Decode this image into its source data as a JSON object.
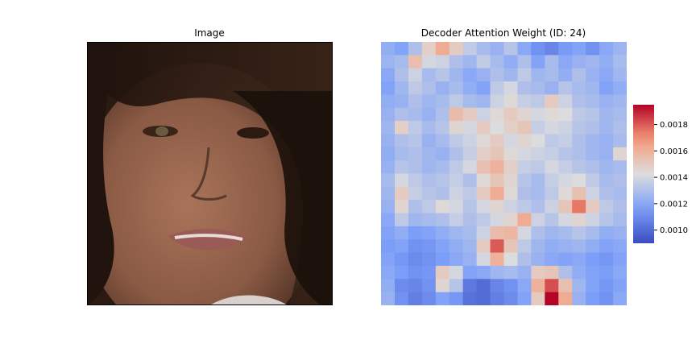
{
  "titles": {
    "image": "Image",
    "heatmap": "Decoder Attention Weight (ID: 24)"
  },
  "image_panel": {
    "subject": "face-photo",
    "colors": {
      "background_dark": "#2a1a12",
      "skin": "#8a5a44",
      "skin_light": "#a9735a",
      "hair": "#1e120c",
      "lips": "#9a5a55",
      "collar": "#d8d0cc"
    }
  },
  "chart_data": {
    "type": "heatmap",
    "title": "Decoder Attention Weight (ID: 24)",
    "colormap": "coolwarm",
    "rows": 20,
    "cols": 18,
    "vmin": 0.0009,
    "vmax": 0.00195,
    "colorbar_ticks": [
      0.001,
      0.0012,
      0.0014,
      0.0016,
      0.0018
    ],
    "colorbar_tick_labels": [
      "0.0010",
      "0.0012",
      "0.0014",
      "0.0016",
      "0.0018"
    ],
    "values": [
      [
        0.00122,
        0.00118,
        0.0013,
        0.00148,
        0.00162,
        0.0015,
        0.00135,
        0.00128,
        0.00124,
        0.00132,
        0.0012,
        0.00112,
        0.00108,
        0.00115,
        0.00118,
        0.00112,
        0.0012,
        0.00125
      ],
      [
        0.00125,
        0.00128,
        0.00155,
        0.0014,
        0.00138,
        0.0013,
        0.00126,
        0.00135,
        0.00128,
        0.00122,
        0.0013,
        0.00118,
        0.00128,
        0.0012,
        0.00124,
        0.00126,
        0.00122,
        0.00128
      ],
      [
        0.0012,
        0.0013,
        0.00138,
        0.00128,
        0.00132,
        0.00126,
        0.0012,
        0.00124,
        0.0013,
        0.00126,
        0.00134,
        0.00126,
        0.00128,
        0.00122,
        0.0013,
        0.00124,
        0.0012,
        0.00126
      ],
      [
        0.00118,
        0.00126,
        0.00134,
        0.0013,
        0.00124,
        0.00128,
        0.00122,
        0.00118,
        0.00134,
        0.0014,
        0.0013,
        0.00128,
        0.00124,
        0.00132,
        0.00128,
        0.00126,
        0.00118,
        0.00122
      ],
      [
        0.00122,
        0.00124,
        0.0013,
        0.00126,
        0.00128,
        0.00134,
        0.00128,
        0.00126,
        0.00138,
        0.00144,
        0.00136,
        0.00134,
        0.0015,
        0.00138,
        0.0013,
        0.00128,
        0.00124,
        0.00126
      ],
      [
        0.00124,
        0.0013,
        0.00128,
        0.00124,
        0.0013,
        0.00156,
        0.0015,
        0.00138,
        0.00144,
        0.0015,
        0.00146,
        0.0014,
        0.00144,
        0.00142,
        0.00134,
        0.00132,
        0.00126,
        0.00128
      ],
      [
        0.00126,
        0.00148,
        0.00134,
        0.00128,
        0.00132,
        0.00146,
        0.0014,
        0.0015,
        0.00142,
        0.00148,
        0.00152,
        0.00136,
        0.0014,
        0.00138,
        0.00132,
        0.0013,
        0.00126,
        0.0013
      ],
      [
        0.00124,
        0.0013,
        0.00132,
        0.00124,
        0.00128,
        0.00134,
        0.00138,
        0.00144,
        0.0015,
        0.0014,
        0.00146,
        0.00142,
        0.00134,
        0.00136,
        0.0013,
        0.00126,
        0.00124,
        0.00128
      ],
      [
        0.00122,
        0.00128,
        0.0013,
        0.00126,
        0.00124,
        0.0013,
        0.00136,
        0.00148,
        0.00152,
        0.00144,
        0.0014,
        0.00138,
        0.00136,
        0.00132,
        0.0013,
        0.00126,
        0.00124,
        0.00146
      ],
      [
        0.00124,
        0.00132,
        0.0013,
        0.00126,
        0.00128,
        0.00134,
        0.0014,
        0.00154,
        0.0016,
        0.00148,
        0.00136,
        0.00134,
        0.0014,
        0.00136,
        0.00132,
        0.0013,
        0.00126,
        0.00128
      ],
      [
        0.00128,
        0.0014,
        0.00134,
        0.0013,
        0.00132,
        0.00136,
        0.0013,
        0.00144,
        0.00152,
        0.00146,
        0.00132,
        0.00128,
        0.00136,
        0.0014,
        0.00142,
        0.00134,
        0.00128,
        0.0013
      ],
      [
        0.00126,
        0.0015,
        0.00136,
        0.00132,
        0.0013,
        0.00138,
        0.00134,
        0.0015,
        0.00162,
        0.00144,
        0.0013,
        0.00128,
        0.00134,
        0.00144,
        0.00154,
        0.00138,
        0.0013,
        0.00128
      ],
      [
        0.00124,
        0.00146,
        0.0013,
        0.00134,
        0.00144,
        0.0014,
        0.00132,
        0.0014,
        0.00146,
        0.00138,
        0.00134,
        0.0013,
        0.00138,
        0.00152,
        0.00175,
        0.0015,
        0.00134,
        0.0013
      ],
      [
        0.0012,
        0.00134,
        0.00126,
        0.00128,
        0.0013,
        0.00136,
        0.0013,
        0.00134,
        0.0014,
        0.00146,
        0.00162,
        0.00138,
        0.00132,
        0.0014,
        0.00146,
        0.00138,
        0.00132,
        0.00128
      ],
      [
        0.00118,
        0.00122,
        0.00116,
        0.00118,
        0.00122,
        0.00126,
        0.00128,
        0.00138,
        0.00156,
        0.00158,
        0.0014,
        0.0013,
        0.00126,
        0.00128,
        0.00132,
        0.00128,
        0.00122,
        0.00124
      ],
      [
        0.00116,
        0.00118,
        0.00112,
        0.00114,
        0.00118,
        0.00122,
        0.00126,
        0.0015,
        0.0018,
        0.00152,
        0.00134,
        0.00126,
        0.00122,
        0.00124,
        0.00126,
        0.00122,
        0.00118,
        0.0012
      ],
      [
        0.00118,
        0.00114,
        0.0011,
        0.00112,
        0.00116,
        0.0012,
        0.00124,
        0.0014,
        0.0016,
        0.00142,
        0.0013,
        0.00124,
        0.0012,
        0.00118,
        0.0012,
        0.00116,
        0.00114,
        0.00118
      ],
      [
        0.0012,
        0.00116,
        0.00112,
        0.00114,
        0.0015,
        0.0014,
        0.00118,
        0.0012,
        0.00126,
        0.00128,
        0.00124,
        0.0015,
        0.00152,
        0.0013,
        0.00122,
        0.00118,
        0.00116,
        0.0012
      ],
      [
        0.00122,
        0.0011,
        0.00108,
        0.00112,
        0.00146,
        0.00132,
        0.00104,
        0.001,
        0.00108,
        0.00112,
        0.0012,
        0.0016,
        0.00182,
        0.00154,
        0.00126,
        0.00118,
        0.00114,
        0.00118
      ],
      [
        0.00124,
        0.00112,
        0.00106,
        0.0011,
        0.00118,
        0.00114,
        0.00102,
        0.001,
        0.00106,
        0.0011,
        0.00118,
        0.0015,
        0.00195,
        0.00162,
        0.00124,
        0.00116,
        0.00112,
        0.0012
      ]
    ]
  }
}
